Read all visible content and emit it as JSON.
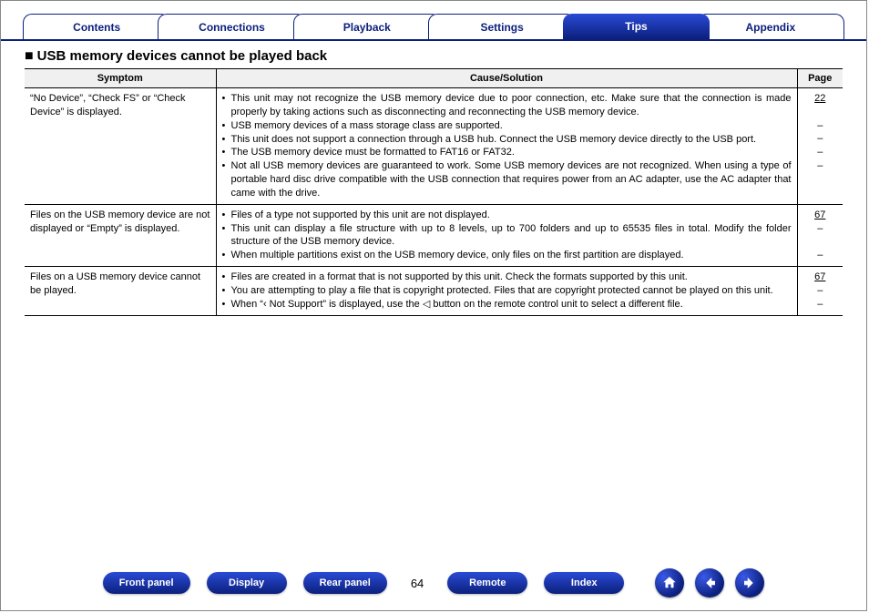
{
  "colors": {
    "brand_blue": "#0b1f7c",
    "brand_blue_light": "#2a4bd6",
    "header_bg": "#f0f0f0",
    "border": "#000000",
    "text": "#000000",
    "white": "#ffffff"
  },
  "tabs": [
    {
      "label": "Contents",
      "active": false
    },
    {
      "label": "Connections",
      "active": false
    },
    {
      "label": "Playback",
      "active": false
    },
    {
      "label": "Settings",
      "active": false
    },
    {
      "label": "Tips",
      "active": true
    },
    {
      "label": "Appendix",
      "active": false
    }
  ],
  "heading": "USB memory devices cannot be played back",
  "table": {
    "headers": {
      "symptom": "Symptom",
      "cause": "Cause/Solution",
      "page": "Page"
    },
    "rows": [
      {
        "symptom": "“No Device”, “Check FS” or “Check Device” is displayed.",
        "causes": [
          "This unit may not recognize the USB memory device due to poor connection, etc. Make sure that the connection is made properly by taking actions such as disconnecting and reconnecting the USB memory device.",
          "USB memory devices of a mass storage class are supported.",
          "This unit does not support a connection through a USB hub. Connect the USB memory device directly to the USB port.",
          "The USB memory device must be formatted to FAT16 or FAT32.",
          "Not all USB memory devices are guaranteed to work. Some USB memory devices are not recognized. When using a type of portable hard disc drive compatible with the USB connection that requires power from an AC adapter, use the AC adapter that came with the drive."
        ],
        "pages": [
          "22",
          "–",
          "–",
          "–",
          "–"
        ],
        "page_links": [
          true,
          false,
          false,
          false,
          false
        ]
      },
      {
        "symptom": "Files on the USB memory device are not displayed or “Empty” is displayed.",
        "causes": [
          "Files of a type not supported by this unit are not displayed.",
          "This unit can display a file structure with up to 8 levels, up to 700 folders and up to 65535 files in total. Modify the folder structure of the USB memory device.",
          "When multiple partitions exist on the USB memory device, only files on the first partition are displayed."
        ],
        "pages": [
          "67",
          "–",
          "–"
        ],
        "page_links": [
          true,
          false,
          false
        ]
      },
      {
        "symptom": "Files on a USB memory device cannot be played.",
        "causes": [
          "Files are created in a format that is not supported by this unit. Check the formats supported by this unit.",
          "You are attempting to play a file that is copyright protected. Files that are copyright protected cannot be played on this unit.",
          "When “‹ Not Support” is displayed, use the ◁ button on the remote control unit to select a different file."
        ],
        "pages": [
          "67",
          "–",
          "–"
        ],
        "page_links": [
          true,
          false,
          false
        ]
      }
    ]
  },
  "footer": {
    "left_pills": [
      "Front panel",
      "Display",
      "Rear panel"
    ],
    "page_number": "64",
    "right_pills": [
      "Remote",
      "Index"
    ],
    "icons": [
      "home",
      "back",
      "forward"
    ]
  }
}
